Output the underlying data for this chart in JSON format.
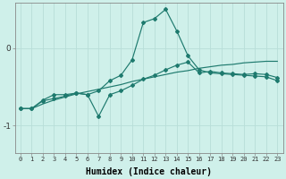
{
  "xlabel": "Humidex (Indice chaleur)",
  "background_color": "#cff0ea",
  "grid_color": "#b8ddd8",
  "line_color": "#1e7a6e",
  "x_ticks": [
    0,
    1,
    2,
    3,
    4,
    5,
    6,
    7,
    8,
    9,
    10,
    11,
    12,
    13,
    14,
    15,
    16,
    17,
    18,
    19,
    20,
    21,
    22,
    23
  ],
  "y_ticks": [
    -1,
    0
  ],
  "y_min": -1.35,
  "y_max": 0.58,
  "series1_y": [
    -0.78,
    -0.78,
    -0.68,
    -0.65,
    -0.62,
    -0.58,
    -0.6,
    -0.55,
    -0.42,
    -0.35,
    -0.15,
    0.33,
    0.38,
    0.5,
    0.22,
    -0.1,
    -0.28,
    -0.32,
    -0.33,
    -0.34,
    -0.35,
    -0.36,
    -0.37,
    -0.42
  ],
  "series2_y": [
    -0.78,
    -0.78,
    -0.67,
    -0.6,
    -0.6,
    -0.58,
    -0.6,
    -0.88,
    -0.6,
    -0.55,
    -0.48,
    -0.4,
    -0.35,
    -0.28,
    -0.22,
    -0.18,
    -0.32,
    -0.3,
    -0.32,
    -0.33,
    -0.34,
    -0.33,
    -0.34,
    -0.38
  ],
  "series3_y": [
    -0.78,
    -0.78,
    -0.72,
    -0.67,
    -0.63,
    -0.59,
    -0.56,
    -0.53,
    -0.5,
    -0.47,
    -0.43,
    -0.4,
    -0.37,
    -0.34,
    -0.31,
    -0.29,
    -0.26,
    -0.24,
    -0.22,
    -0.21,
    -0.19,
    -0.18,
    -0.17,
    -0.17
  ]
}
